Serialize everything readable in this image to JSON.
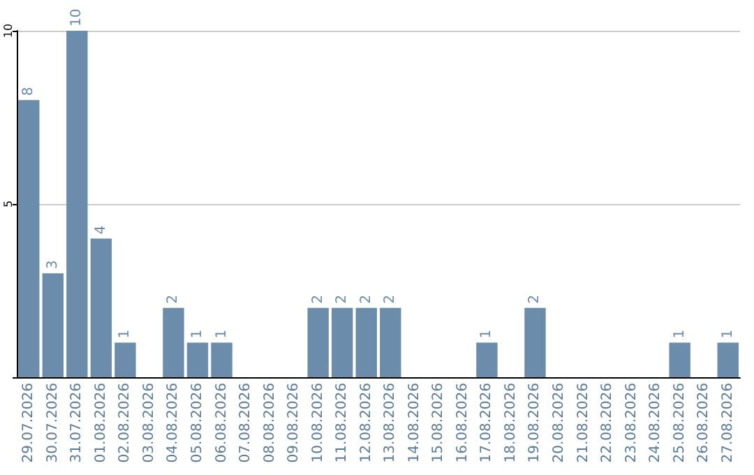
{
  "chart_data": {
    "type": "bar",
    "categories": [
      "29.07.2026",
      "30.07.2026",
      "31.07.2026",
      "01.08.2026",
      "02.08.2026",
      "03.08.2026",
      "04.08.2026",
      "05.08.2026",
      "06.08.2026",
      "07.08.2026",
      "08.08.2026",
      "09.08.2026",
      "10.08.2026",
      "11.08.2026",
      "12.08.2026",
      "13.08.2026",
      "14.08.2026",
      "15.08.2026",
      "16.08.2026",
      "17.08.2026",
      "18.08.2026",
      "19.08.2026",
      "20.08.2026",
      "21.08.2026",
      "22.08.2026",
      "23.08.2026",
      "24.08.2026",
      "25.08.2026",
      "26.08.2026",
      "27.08.2026"
    ],
    "values": [
      8,
      3,
      10,
      4,
      1,
      0,
      2,
      1,
      1,
      0,
      0,
      0,
      2,
      2,
      2,
      2,
      0,
      0,
      0,
      1,
      0,
      2,
      0,
      0,
      0,
      0,
      0,
      1,
      0,
      1
    ],
    "value_labels": [
      "8",
      "3",
      "10",
      "4",
      "1",
      null,
      "2",
      "1",
      "1",
      null,
      null,
      null,
      "2",
      "2",
      "2",
      "2",
      null,
      null,
      null,
      "1",
      null,
      "2",
      null,
      null,
      null,
      null,
      null,
      "1",
      null,
      "1"
    ],
    "color": "#6b8cab",
    "ylim": [
      0,
      10
    ],
    "yticks": [
      {
        "value": 0,
        "label": null
      },
      5,
      10
    ],
    "grid": "y"
  }
}
